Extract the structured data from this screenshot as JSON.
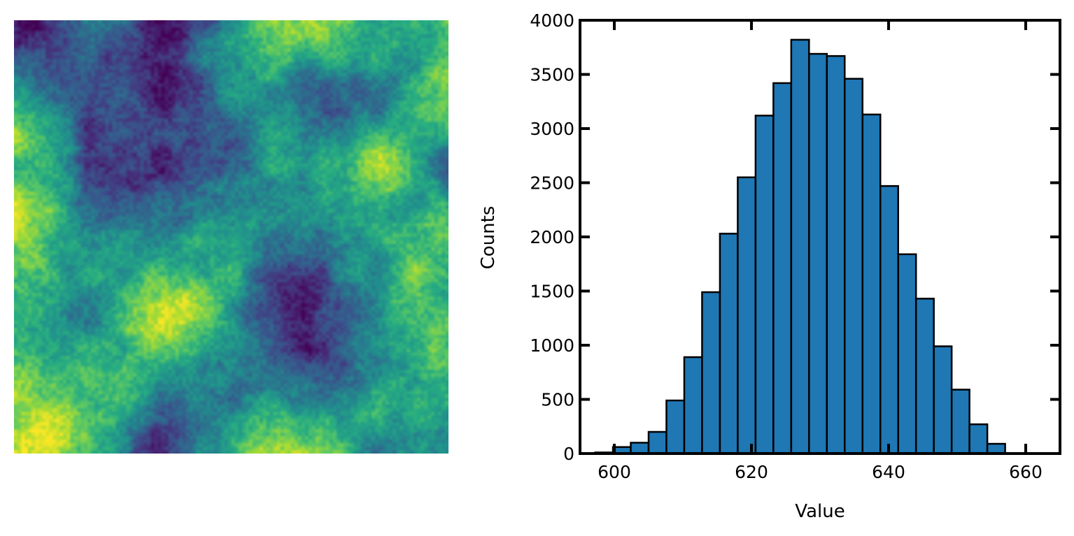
{
  "chart_data": [
    {
      "type": "heatmap",
      "colormap": "viridis",
      "axes": "off"
    },
    {
      "type": "bar",
      "xlabel": "Value",
      "ylabel": "Counts",
      "xlim": [
        595,
        665
      ],
      "ylim": [
        0,
        4000
      ],
      "x_ticks": [
        "600",
        "620",
        "640",
        "660"
      ],
      "y_ticks": [
        "0",
        "500",
        "1000",
        "1500",
        "2000",
        "2500",
        "3000",
        "3500",
        "4000"
      ],
      "bar_color": "#1f77b4",
      "edge_color": "#000000",
      "bin_edges": [
        597.2,
        599.8,
        602.4,
        605.0,
        607.6,
        610.2,
        612.8,
        615.4,
        618.0,
        620.6,
        623.2,
        625.8,
        628.4,
        631.0,
        633.6,
        636.2,
        638.8,
        641.4,
        644.0,
        646.6,
        649.2,
        651.8,
        654.4,
        657.0
      ],
      "counts": [
        10,
        60,
        100,
        200,
        490,
        890,
        1490,
        2030,
        2550,
        3120,
        3420,
        3820,
        3690,
        3670,
        3460,
        3130,
        2470,
        1840,
        1430,
        990,
        590,
        270,
        90
      ]
    }
  ]
}
